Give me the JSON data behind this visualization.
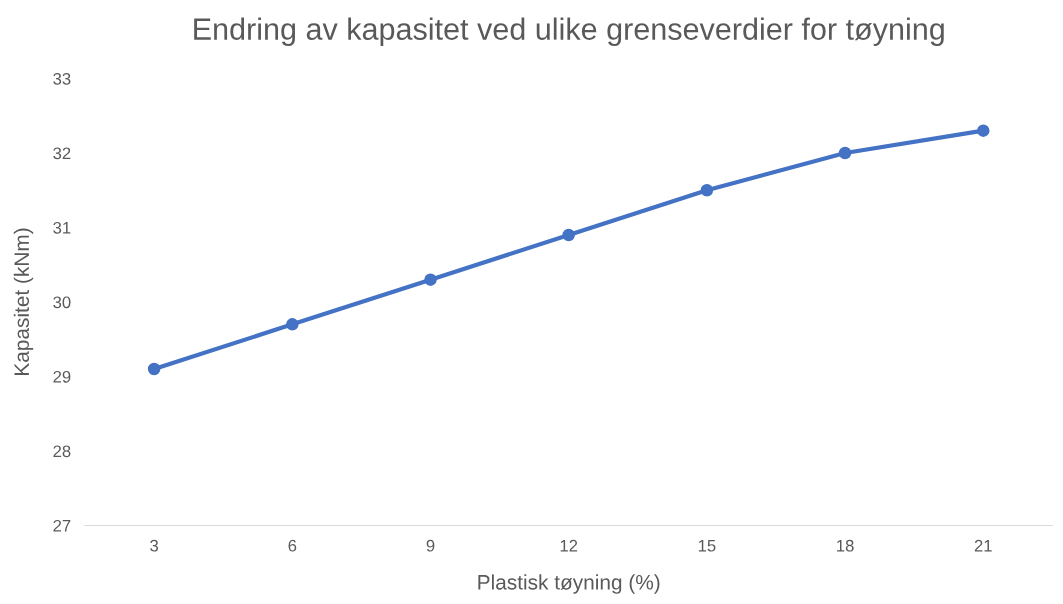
{
  "chart_data": {
    "type": "line",
    "title": "Endring av kapasitet ved ulike grenseverdier for tøyning",
    "xlabel": "Plastisk tøyning (%)",
    "ylabel": "Kapasitet (kNm)",
    "categories": [
      "3",
      "6",
      "9",
      "12",
      "15",
      "18",
      "21"
    ],
    "series": [
      {
        "color": "#4472c4",
        "values": [
          29.1,
          29.7,
          30.3,
          30.9,
          31.5,
          32.0,
          32.3
        ]
      }
    ],
    "ylim": [
      27,
      33
    ],
    "yticks": [
      27,
      28,
      29,
      30,
      31,
      32,
      33
    ],
    "marker": "circle",
    "line_style": "solid",
    "grid": false,
    "legend": false
  }
}
